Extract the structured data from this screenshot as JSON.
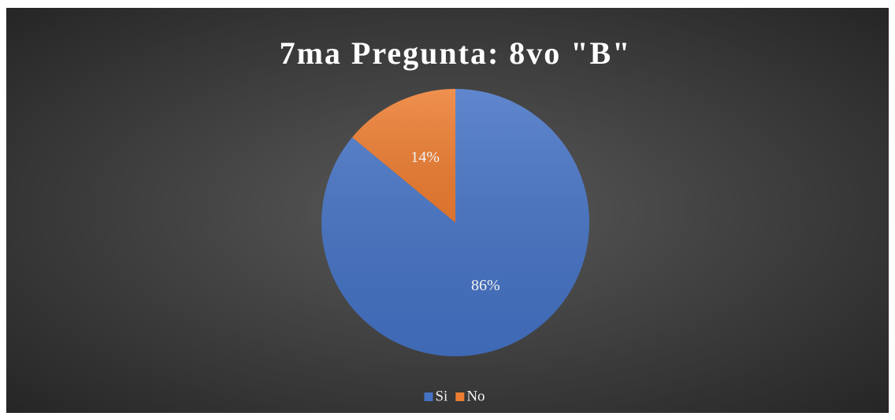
{
  "chart_data": {
    "type": "pie",
    "title": "7ma Pregunta: 8vo \"B\"",
    "categories": [
      "Si",
      "No"
    ],
    "values": [
      86,
      14
    ],
    "value_labels": [
      "86%",
      "14%"
    ],
    "colors": [
      "#4472c4",
      "#ed7d31"
    ],
    "legend": "bottom"
  }
}
